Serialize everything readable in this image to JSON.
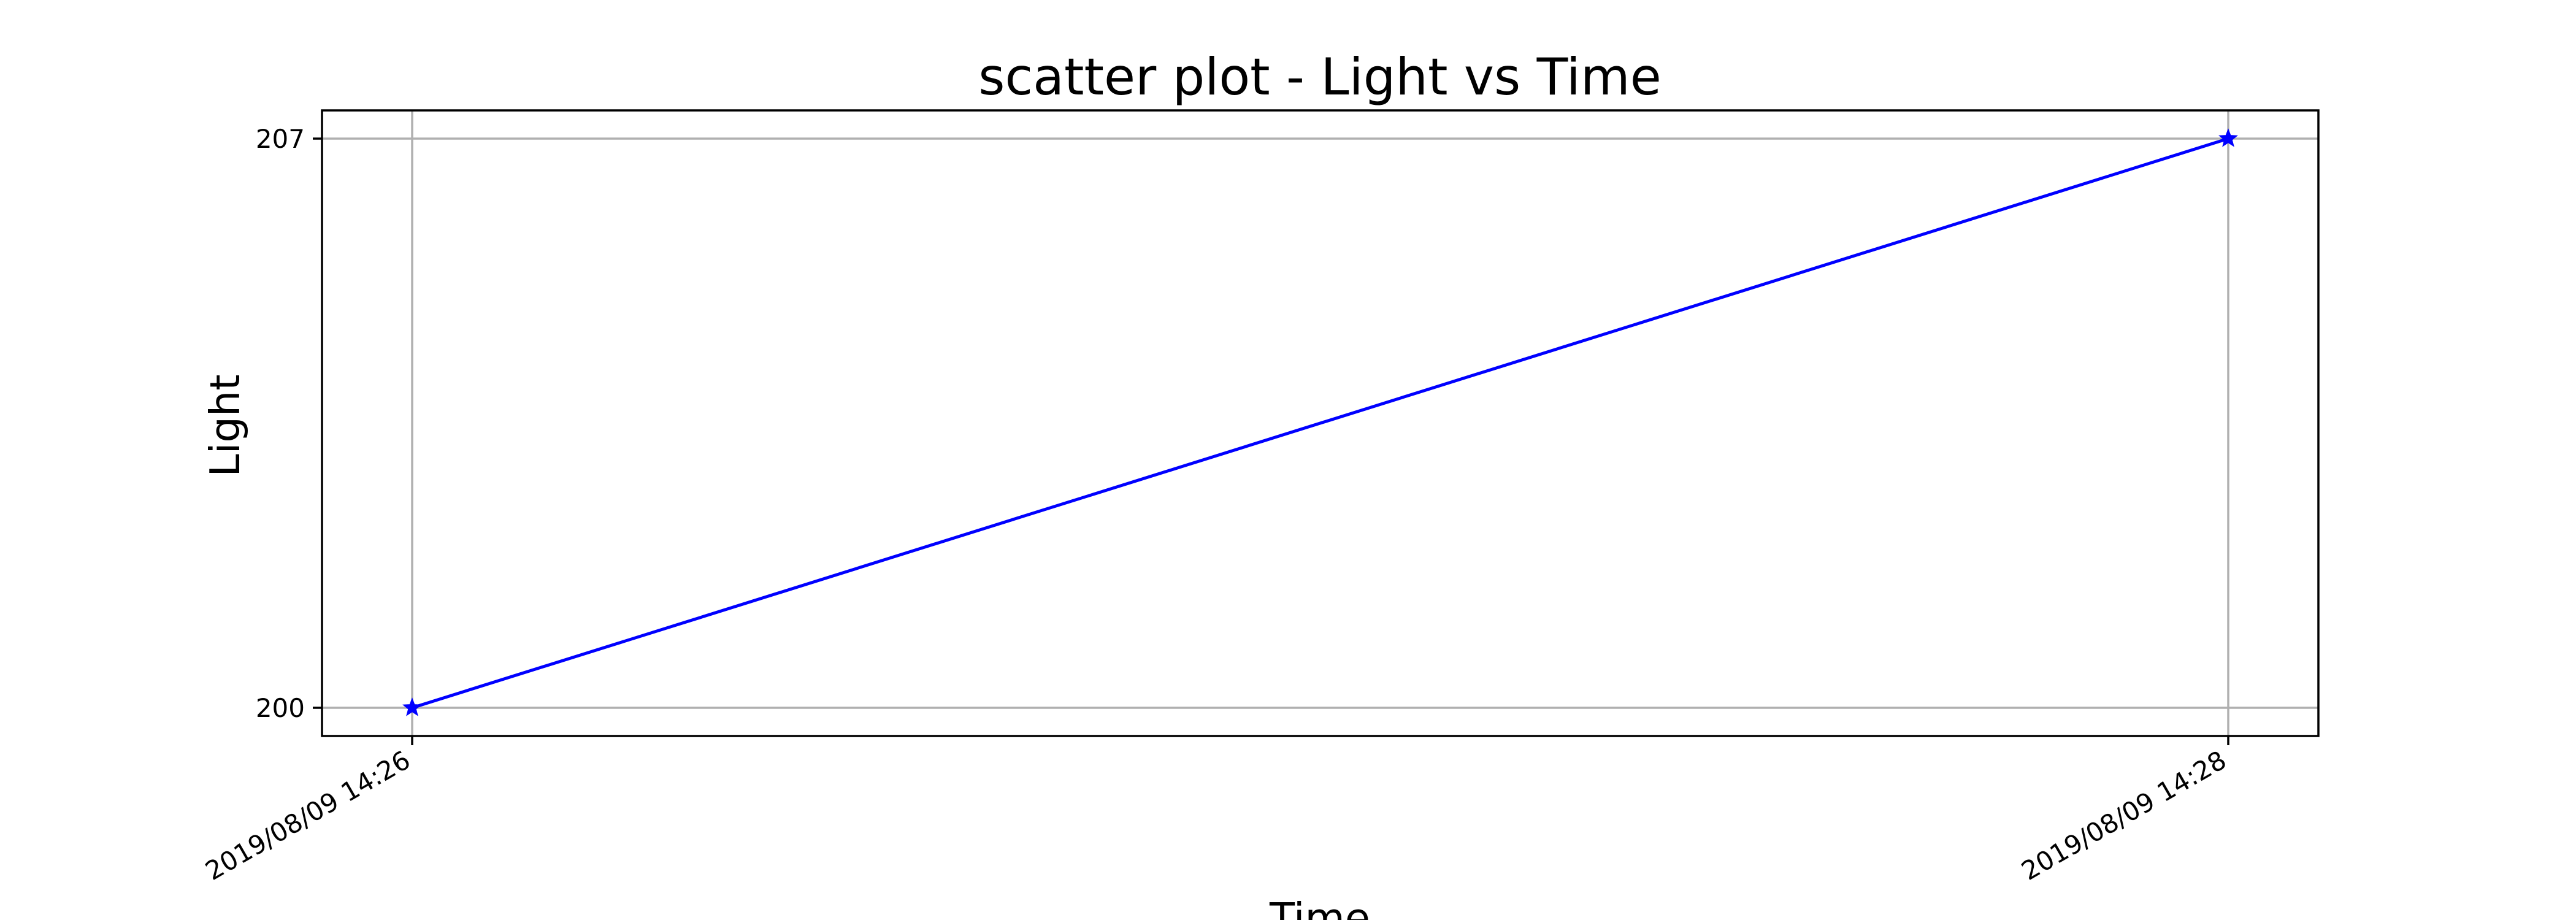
{
  "chart_data": {
    "type": "line",
    "title": "scatter plot - Light vs Time",
    "xlabel": "Time",
    "ylabel": "Light",
    "x": [
      "2019/08/09 14:26",
      "2019/08/09 14:28"
    ],
    "series": [
      {
        "values": [
          200,
          207
        ],
        "color": "#0000ff",
        "marker": "star"
      }
    ],
    "yticks": [
      200,
      207
    ],
    "xticks": [
      "2019/08/09 14:26",
      "2019/08/09 14:28"
    ],
    "grid": true,
    "legend": false
  }
}
